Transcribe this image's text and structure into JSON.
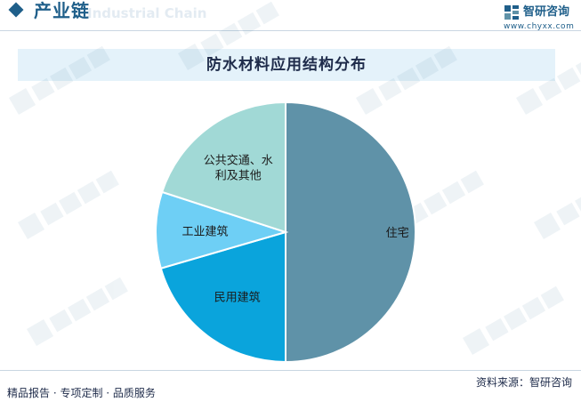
{
  "header": {
    "title": "产业链",
    "ghost_text": "Industrial Chain",
    "brand_name": "智研咨询",
    "brand_url": "www.chyxx.com"
  },
  "watermark": {
    "text": "智研咨询"
  },
  "chart_data": {
    "type": "pie",
    "title": "防水材料应用结构分布",
    "start_angle_deg": 90,
    "direction": "clockwise",
    "slices": [
      {
        "label": "住宅",
        "label_lines": [
          "住宅"
        ],
        "value": 50,
        "color": "#5f92a8"
      },
      {
        "label": "民用建筑",
        "label_lines": [
          "民用建筑"
        ],
        "value": 20.5,
        "color": "#0aa4dc"
      },
      {
        "label": "工业建筑",
        "label_lines": [
          "工业建筑"
        ],
        "value": 9.5,
        "color": "#6ecff5"
      },
      {
        "label": "公共交通、水利及其他",
        "label_lines": [
          "公共交通、水",
          "利及其他"
        ],
        "value": 20,
        "color": "#a1d9d6"
      }
    ]
  },
  "footer": {
    "left": "精品报告 · 专项定制 · 品质服务",
    "right": "资料来源：智研咨询"
  }
}
